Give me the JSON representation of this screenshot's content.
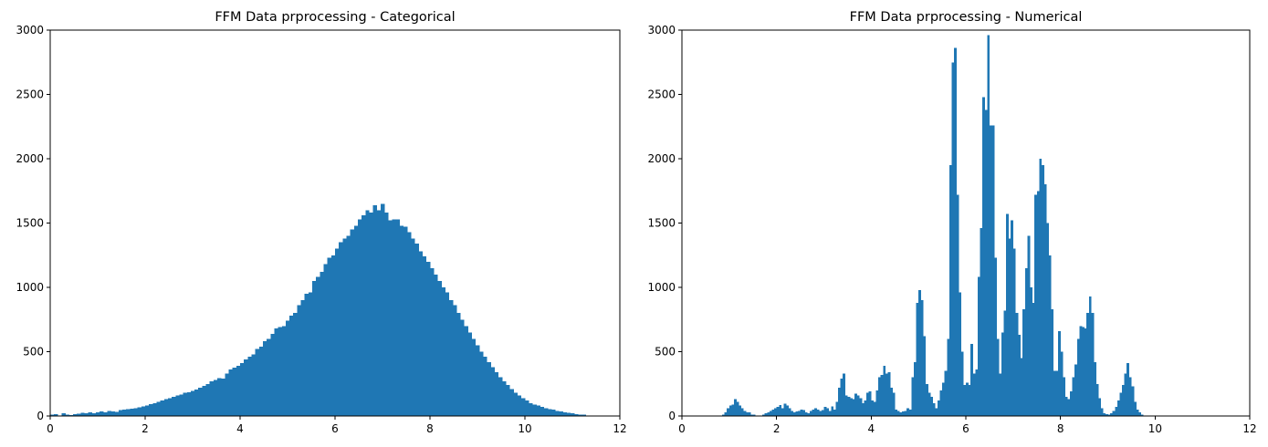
{
  "chart_data": [
    {
      "type": "bar",
      "title": "FFM Data prprocessing - Categorical",
      "xlabel": "",
      "ylabel": "",
      "xlim": [
        0,
        12
      ],
      "ylim": [
        0,
        3000
      ],
      "xticks": [
        "0",
        "2",
        "4",
        "6",
        "8",
        "10",
        "12"
      ],
      "yticks": [
        "0",
        "500",
        "1000",
        "1500",
        "2000",
        "2500",
        "3000"
      ],
      "grid": false,
      "color": "#1f77b4",
      "bin_width": 0.08,
      "bin_start": 0,
      "values": [
        10,
        15,
        5,
        20,
        12,
        8,
        15,
        18,
        25,
        20,
        28,
        22,
        30,
        35,
        28,
        40,
        35,
        32,
        45,
        50,
        55,
        58,
        62,
        68,
        75,
        80,
        92,
        100,
        110,
        120,
        130,
        140,
        150,
        160,
        165,
        180,
        185,
        195,
        205,
        220,
        235,
        250,
        268,
        280,
        295,
        290,
        330,
        360,
        375,
        390,
        410,
        440,
        460,
        480,
        520,
        540,
        580,
        600,
        640,
        680,
        690,
        700,
        740,
        780,
        800,
        860,
        900,
        950,
        960,
        1050,
        1080,
        1120,
        1180,
        1230,
        1250,
        1300,
        1350,
        1380,
        1400,
        1450,
        1480,
        1530,
        1560,
        1600,
        1580,
        1640,
        1600,
        1650,
        1580,
        1520,
        1530,
        1530,
        1480,
        1470,
        1430,
        1380,
        1340,
        1280,
        1240,
        1200,
        1150,
        1100,
        1050,
        1000,
        960,
        900,
        860,
        800,
        750,
        700,
        650,
        600,
        550,
        500,
        460,
        420,
        380,
        340,
        300,
        270,
        240,
        210,
        180,
        160,
        140,
        120,
        100,
        90,
        80,
        70,
        60,
        55,
        50,
        40,
        35,
        30,
        25,
        20,
        15,
        12,
        10,
        5,
        5,
        3,
        2
      ]
    },
    {
      "type": "bar",
      "title": "FFM Data prprocessing - Numerical",
      "xlabel": "",
      "ylabel": "",
      "xlim": [
        0,
        12
      ],
      "ylim": [
        0,
        3000
      ],
      "xticks": [
        "0",
        "2",
        "4",
        "6",
        "8",
        "10",
        "12"
      ],
      "yticks": [
        "0",
        "500",
        "1000",
        "1500",
        "2000",
        "2500",
        "3000"
      ],
      "grid": false,
      "color": "#1f77b4",
      "bin_width": 0.05,
      "bin_start": 0,
      "values": [
        0,
        0,
        0,
        0,
        0,
        0,
        0,
        0,
        0,
        0,
        0,
        0,
        0,
        0,
        0,
        0,
        5,
        10,
        30,
        60,
        80,
        90,
        130,
        110,
        80,
        60,
        40,
        30,
        30,
        10,
        10,
        5,
        5,
        5,
        10,
        20,
        30,
        40,
        50,
        60,
        70,
        85,
        60,
        95,
        80,
        60,
        40,
        30,
        35,
        40,
        50,
        45,
        30,
        20,
        40,
        50,
        60,
        50,
        40,
        45,
        70,
        60,
        40,
        75,
        50,
        110,
        220,
        290,
        330,
        160,
        150,
        140,
        130,
        175,
        160,
        140,
        100,
        120,
        180,
        190,
        120,
        110,
        200,
        300,
        320,
        390,
        330,
        340,
        220,
        180,
        50,
        40,
        30,
        35,
        40,
        60,
        50,
        300,
        420,
        880,
        980,
        900,
        620,
        250,
        180,
        150,
        100,
        60,
        120,
        200,
        260,
        350,
        600,
        1950,
        2750,
        2860,
        1720,
        960,
        500,
        240,
        260,
        240,
        560,
        330,
        360,
        1080,
        1460,
        2480,
        2380,
        2960,
        2260,
        2260,
        1230,
        600,
        330,
        650,
        820,
        1570,
        1380,
        1520,
        1300,
        800,
        630,
        450,
        830,
        1150,
        1400,
        1000,
        880,
        1720,
        1750,
        2000,
        1950,
        1800,
        1500,
        1250,
        830,
        350,
        350,
        660,
        500,
        300,
        150,
        130,
        190,
        300,
        400,
        600,
        700,
        690,
        680,
        800,
        930,
        800,
        420,
        250,
        140,
        60,
        20,
        15,
        10,
        20,
        40,
        70,
        120,
        180,
        240,
        330,
        410,
        300,
        230,
        110,
        50,
        30,
        10,
        0,
        0
      ]
    }
  ]
}
